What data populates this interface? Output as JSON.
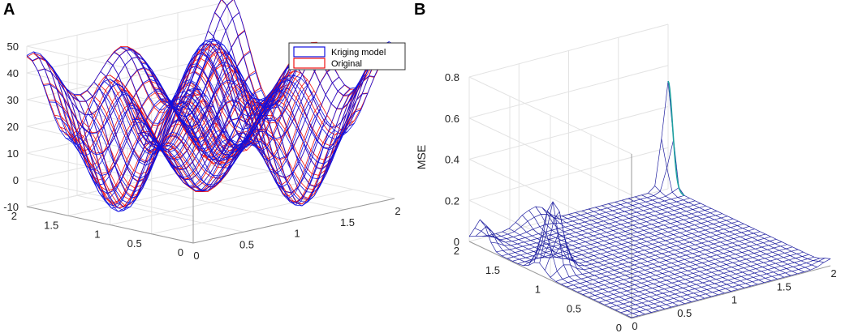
{
  "figure": {
    "panels": [
      "A",
      "B"
    ]
  },
  "chart_data": [
    {
      "panel": "A",
      "type": "surface",
      "title": "",
      "xlabel": "",
      "ylabel": "",
      "zlabel": "",
      "x_range": [
        0,
        2
      ],
      "y_range": [
        0,
        2
      ],
      "z_range": [
        -10,
        50
      ],
      "x_ticks": [
        "0",
        "0.5",
        "1",
        "1.5",
        "2"
      ],
      "y_ticks": [
        "0",
        "0.5",
        "1",
        "1.5",
        "2"
      ],
      "z_ticks": [
        "-10",
        "0",
        "10",
        "20",
        "30",
        "40",
        "50"
      ],
      "grid": true,
      "legend_position": "top-right",
      "series": [
        {
          "name": "Kriging model",
          "color": "#1010e0",
          "mesh": "30x30",
          "z_min": -8,
          "z_max": 50
        },
        {
          "name": "Original",
          "color": "#ee1111",
          "mesh": "30x30",
          "z_min": -8,
          "z_max": 50
        }
      ]
    },
    {
      "panel": "B",
      "type": "surface",
      "title": "",
      "xlabel": "",
      "ylabel": "",
      "zlabel": "MSE",
      "x_range": [
        0,
        2
      ],
      "y_range": [
        0,
        2
      ],
      "z_range": [
        0,
        0.8
      ],
      "x_ticks": [
        "0",
        "0.5",
        "1",
        "1.5",
        "2"
      ],
      "y_ticks": [
        "0",
        "0.5",
        "1",
        "1.5",
        "2"
      ],
      "z_ticks": [
        "0",
        "0.2",
        "0.4",
        "0.6",
        "0.8"
      ],
      "grid": true,
      "series": [
        {
          "name": "MSE",
          "color": "#2020a0",
          "mesh": "30x30",
          "z_min": 0,
          "z_max": 0.52
        }
      ],
      "peaks": [
        {
          "x": 2,
          "y": 2,
          "z": 0.52
        },
        {
          "x": 0.15,
          "y": 1.15,
          "z": 0.35
        },
        {
          "x": 0,
          "y": 1.85,
          "z": 0.13
        },
        {
          "x": 0.7,
          "y": 2,
          "z": 0.07
        },
        {
          "x": 0.55,
          "y": 2,
          "z": 0.05
        },
        {
          "x": 2,
          "y": 0,
          "z": 0.03
        }
      ]
    }
  ]
}
